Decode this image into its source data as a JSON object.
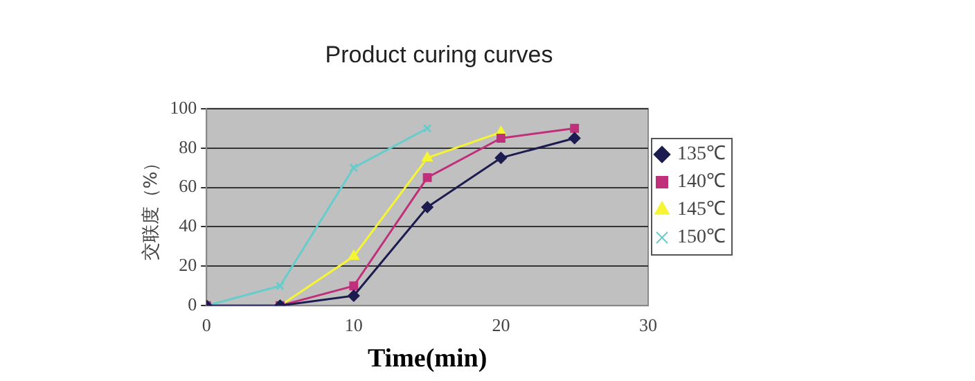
{
  "chart_data": {
    "type": "line",
    "title": "Product curing curves",
    "xlabel": "Time(min)",
    "ylabel": "交联度（%）",
    "x": [
      0,
      5,
      10,
      15,
      20,
      25
    ],
    "series": [
      {
        "name": "135℃",
        "color": "#1c1c50",
        "marker": "diamond",
        "values": [
          0,
          0,
          5,
          50,
          75,
          85
        ]
      },
      {
        "name": "140℃",
        "color": "#c0307a",
        "marker": "square",
        "values": [
          0,
          0,
          10,
          65,
          85,
          90
        ]
      },
      {
        "name": "145℃",
        "color": "#f5f533",
        "marker": "triangle",
        "values": [
          0,
          0,
          25,
          75,
          88,
          null
        ]
      },
      {
        "name": "150℃",
        "color": "#66cccc",
        "marker": "cross",
        "values": [
          0,
          10,
          70,
          90,
          null,
          null
        ]
      }
    ],
    "xlim": [
      0,
      30
    ],
    "xticks": [
      0,
      10,
      20,
      30
    ],
    "ylim": [
      0,
      100
    ],
    "yticks": [
      0,
      20,
      40,
      60,
      80,
      100
    ],
    "grid": "y",
    "legend": "right",
    "line_style": "solid"
  }
}
